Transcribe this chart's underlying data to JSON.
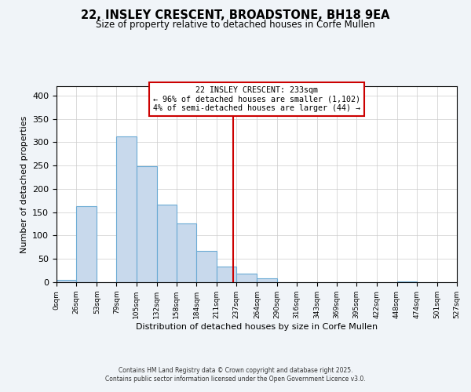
{
  "title": "22, INSLEY CRESCENT, BROADSTONE, BH18 9EA",
  "subtitle": "Size of property relative to detached houses in Corfe Mullen",
  "xlabel": "Distribution of detached houses by size in Corfe Mullen",
  "ylabel": "Number of detached properties",
  "bin_edges": [
    0,
    26,
    53,
    79,
    105,
    132,
    158,
    184,
    211,
    237,
    264,
    290,
    316,
    343,
    369,
    395,
    422,
    448,
    474,
    501,
    527
  ],
  "bin_heights": [
    5,
    163,
    0,
    312,
    249,
    167,
    126,
    68,
    33,
    18,
    8,
    0,
    0,
    0,
    0,
    0,
    0,
    1,
    0,
    0
  ],
  "bar_facecolor": "#c8d9ec",
  "bar_edgecolor": "#6aaad4",
  "vline_x": 233,
  "vline_color": "#cc0000",
  "annotation_title": "22 INSLEY CRESCENT: 233sqm",
  "annotation_line1": "← 96% of detached houses are smaller (1,102)",
  "annotation_line2": "4% of semi-detached houses are larger (44) →",
  "annotation_box_edgecolor": "#cc0000",
  "ylim": [
    0,
    420
  ],
  "tick_labels": [
    "0sqm",
    "26sqm",
    "53sqm",
    "79sqm",
    "105sqm",
    "132sqm",
    "158sqm",
    "184sqm",
    "211sqm",
    "237sqm",
    "264sqm",
    "290sqm",
    "316sqm",
    "343sqm",
    "369sqm",
    "395sqm",
    "422sqm",
    "448sqm",
    "474sqm",
    "501sqm",
    "527sqm"
  ],
  "footnote1": "Contains HM Land Registry data © Crown copyright and database right 2025.",
  "footnote2": "Contains public sector information licensed under the Open Government Licence v3.0.",
  "background_color": "#f0f4f8",
  "plot_bg_color": "#ffffff",
  "grid_color": "#cccccc"
}
